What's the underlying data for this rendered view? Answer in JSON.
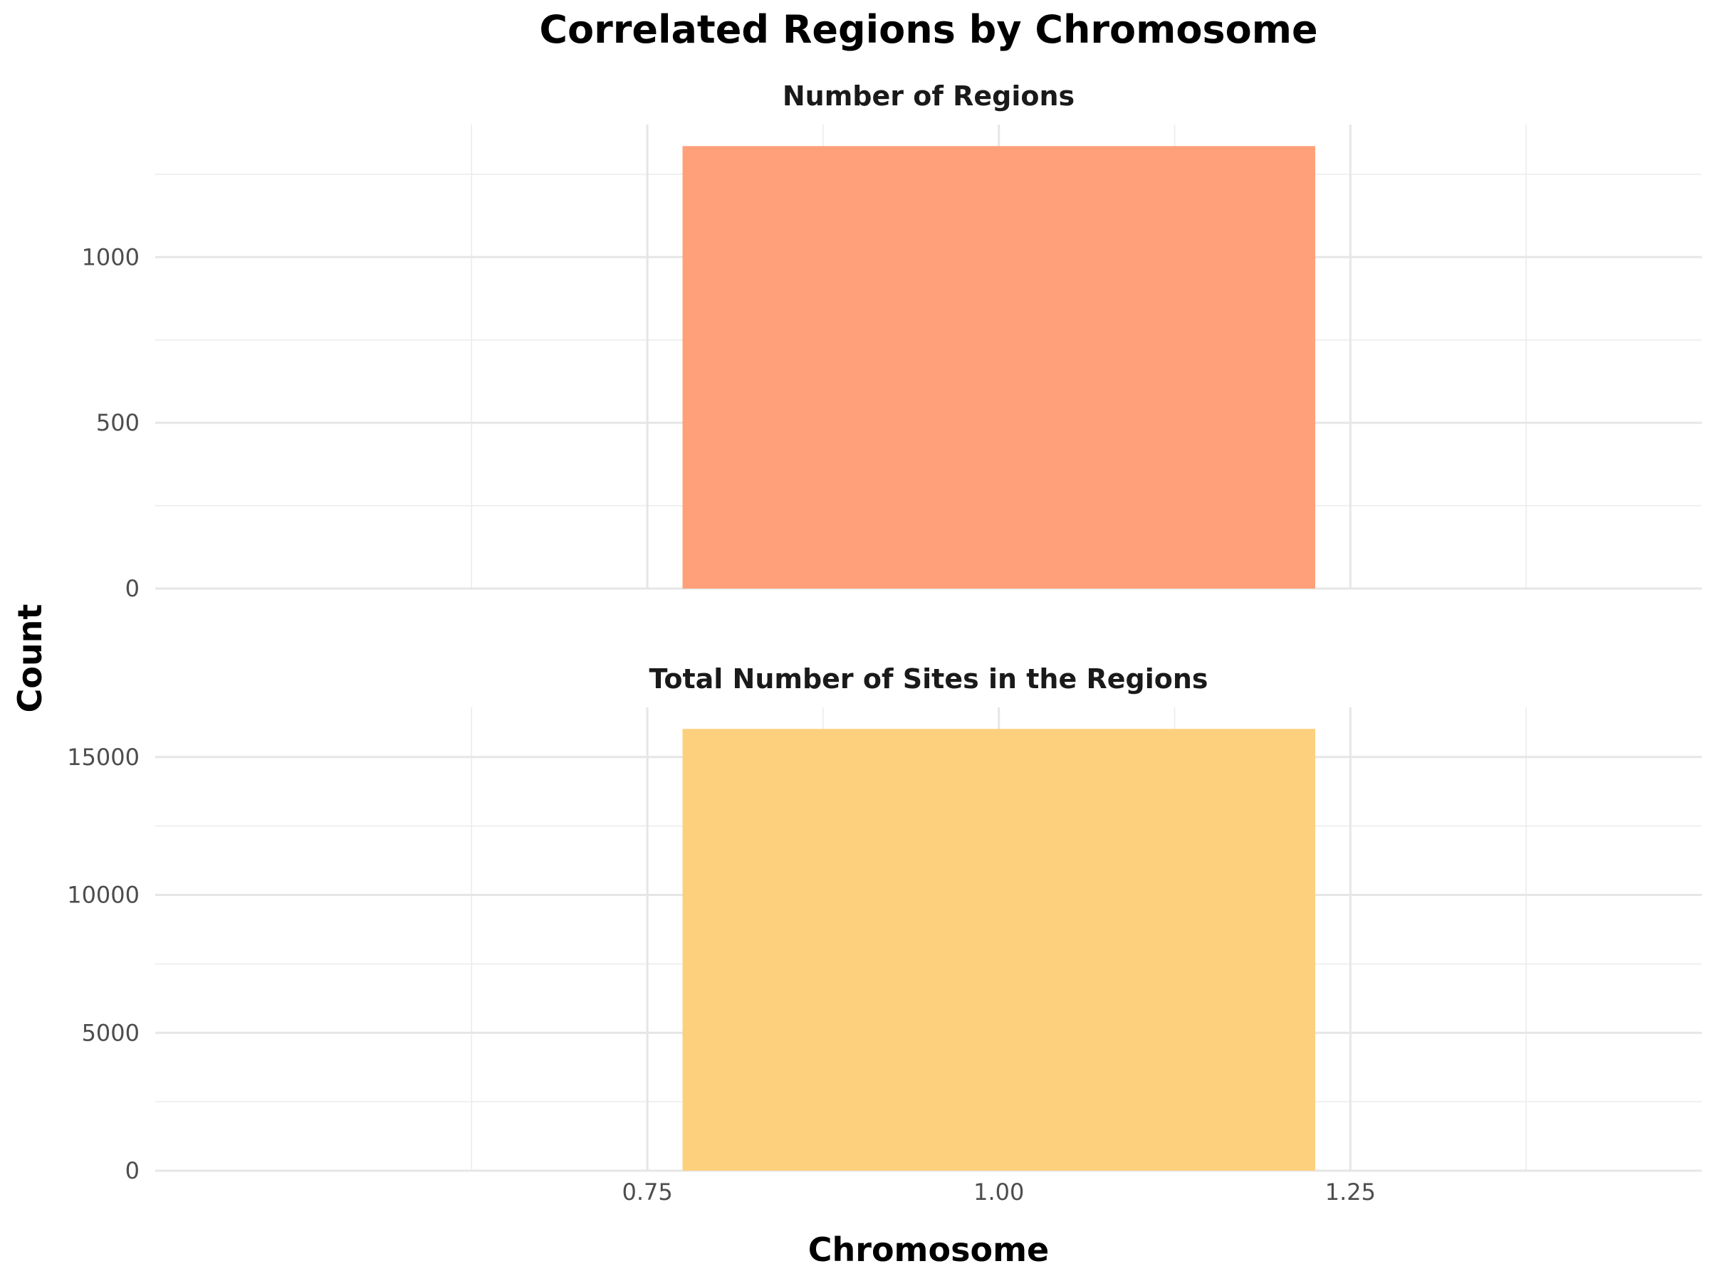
{
  "chart_data": {
    "type": "bar",
    "title": "Correlated Regions by Chromosome",
    "xlabel": "Chromosome",
    "ylabel": "Count",
    "x_ticks": [
      "0.75",
      "1.00",
      "1.25"
    ],
    "xlim": [
      0.4,
      1.5
    ],
    "grid": true,
    "panels": [
      {
        "title": "Number of Regions",
        "x": [
          1
        ],
        "values": [
          1335
        ],
        "color": "#FFA07A",
        "ylim": [
          0,
          1400
        ],
        "y_ticks": [
          "0",
          "500",
          "1000"
        ]
      },
      {
        "title": "Total Number of Sites in the Regions",
        "x": [
          1
        ],
        "values": [
          16020
        ],
        "color": "#FDD07D",
        "ylim": [
          0,
          16800
        ],
        "y_ticks": [
          "0",
          "5000",
          "10000",
          "15000"
        ]
      }
    ]
  }
}
